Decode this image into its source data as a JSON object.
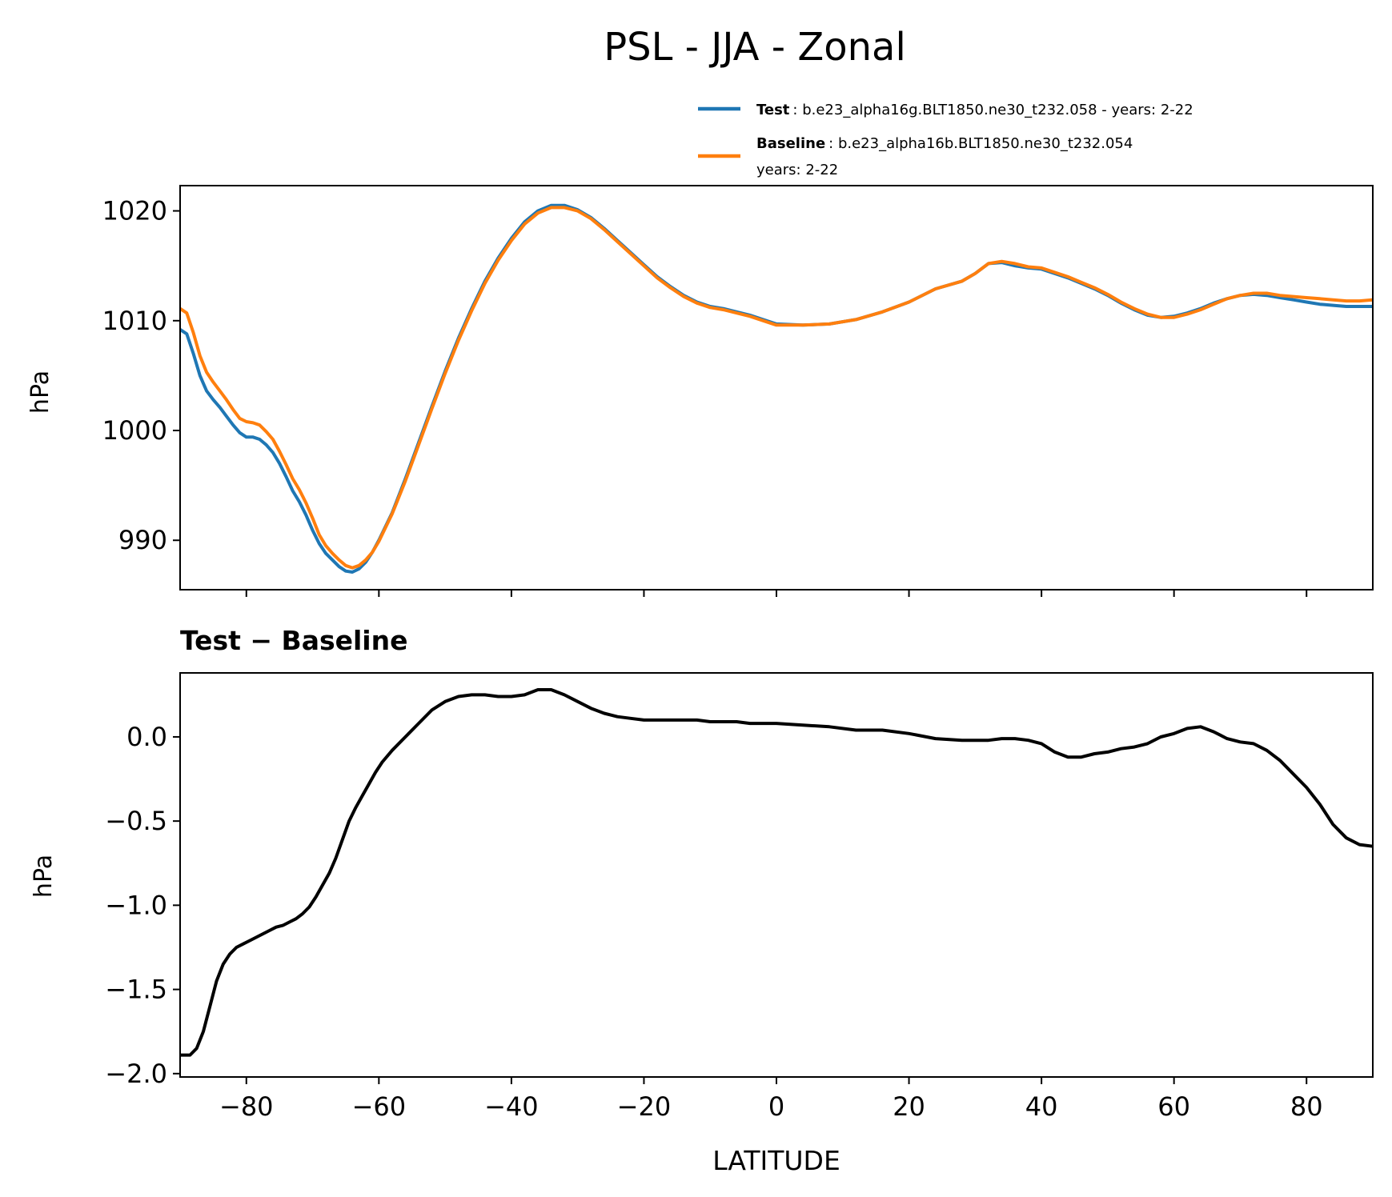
{
  "title": "PSL - JJA - Zonal",
  "legend": {
    "test_label": "Test",
    "test_text": ": b.e23_alpha16g.BLT1850.ne30_t232.058 - years: 2-22",
    "baseline_label": "Baseline",
    "baseline_text": ": b.e23_alpha16b.BLT1850.ne30_t232.054",
    "baseline_text2": "years: 2-22"
  },
  "colors": {
    "test": "#1f77b4",
    "baseline": "#ff7f0e",
    "diff": "#000000"
  },
  "chart_data": [
    {
      "type": "line",
      "panel": "top",
      "ylabel": "hPa",
      "xlim": [
        -90,
        90
      ],
      "ylim": [
        985.5,
        1022.3
      ],
      "yticks": [
        990,
        1000,
        1010,
        1020
      ],
      "xticks": [
        -80,
        -60,
        -40,
        -20,
        0,
        20,
        40,
        60,
        80
      ],
      "grid": false,
      "legend_position": "above-right",
      "series": [
        {
          "name": "Test",
          "x": [
            -90,
            -89,
            -88,
            -87,
            -86,
            -85,
            -84,
            -83,
            -82,
            -81,
            -80,
            -79,
            -78,
            -77,
            -76,
            -75,
            -74,
            -73,
            -72,
            -71,
            -70,
            -69,
            -68,
            -67,
            -66,
            -65,
            -64,
            -63,
            -62,
            -61,
            -60,
            -58,
            -56,
            -54,
            -52,
            -50,
            -48,
            -46,
            -44,
            -42,
            -40,
            -38,
            -36,
            -34,
            -32,
            -30,
            -28,
            -26,
            -24,
            -22,
            -20,
            -18,
            -16,
            -14,
            -12,
            -10,
            -8,
            -6,
            -4,
            -2,
            0,
            4,
            8,
            12,
            16,
            20,
            24,
            28,
            30,
            32,
            34,
            36,
            38,
            40,
            42,
            44,
            46,
            48,
            50,
            52,
            54,
            56,
            58,
            60,
            62,
            64,
            66,
            68,
            70,
            72,
            74,
            76,
            78,
            80,
            82,
            84,
            86,
            88,
            90
          ],
          "values": [
            1009.2,
            1008.8,
            1007.0,
            1005.0,
            1003.6,
            1002.8,
            1002.1,
            1001.3,
            1000.5,
            999.8,
            999.4,
            999.4,
            999.2,
            998.7,
            998.0,
            997.0,
            995.8,
            994.5,
            993.5,
            992.3,
            990.9,
            989.7,
            988.8,
            988.2,
            987.6,
            987.2,
            987.1,
            987.4,
            988.0,
            988.9,
            990.0,
            992.5,
            995.6,
            998.9,
            1002.2,
            1005.4,
            1008.4,
            1011.1,
            1013.6,
            1015.7,
            1017.5,
            1019.0,
            1020.0,
            1020.5,
            1020.5,
            1020.1,
            1019.4,
            1018.4,
            1017.3,
            1016.2,
            1015.1,
            1014.0,
            1013.1,
            1012.3,
            1011.7,
            1011.3,
            1011.1,
            1010.8,
            1010.5,
            1010.1,
            1009.7,
            1009.6,
            1009.7,
            1010.1,
            1010.8,
            1011.7,
            1012.9,
            1013.6,
            1014.3,
            1015.2,
            1015.3,
            1015.0,
            1014.8,
            1014.7,
            1014.3,
            1013.9,
            1013.4,
            1012.9,
            1012.3,
            1011.6,
            1011.0,
            1010.5,
            1010.3,
            1010.4,
            1010.7,
            1011.1,
            1011.6,
            1012.0,
            1012.3,
            1012.4,
            1012.3,
            1012.1,
            1011.9,
            1011.7,
            1011.5,
            1011.4,
            1011.3,
            1011.3,
            1011.3
          ]
        },
        {
          "name": "Baseline",
          "x": [
            -90,
            -89,
            -88,
            -87,
            -86,
            -85,
            -84,
            -83,
            -82,
            -81,
            -80,
            -79,
            -78,
            -77,
            -76,
            -75,
            -74,
            -73,
            -72,
            -71,
            -70,
            -69,
            -68,
            -67,
            -66,
            -65,
            -64,
            -63,
            -62,
            -61,
            -60,
            -58,
            -56,
            -54,
            -52,
            -50,
            -48,
            -46,
            -44,
            -42,
            -40,
            -38,
            -36,
            -34,
            -32,
            -30,
            -28,
            -26,
            -24,
            -22,
            -20,
            -18,
            -16,
            -14,
            -12,
            -10,
            -8,
            -6,
            -4,
            -2,
            0,
            4,
            8,
            12,
            16,
            20,
            24,
            28,
            30,
            32,
            34,
            36,
            38,
            40,
            42,
            44,
            46,
            48,
            50,
            52,
            54,
            56,
            58,
            60,
            62,
            64,
            66,
            68,
            70,
            72,
            74,
            76,
            78,
            80,
            82,
            84,
            86,
            88,
            90
          ],
          "values": [
            1011.1,
            1010.7,
            1008.9,
            1006.8,
            1005.3,
            1004.4,
            1003.6,
            1002.8,
            1001.9,
            1001.1,
            1000.8,
            1000.7,
            1000.5,
            999.9,
            999.2,
            998.1,
            996.9,
            995.6,
            994.6,
            993.4,
            992.0,
            990.5,
            989.5,
            988.8,
            988.2,
            987.7,
            987.5,
            987.7,
            988.2,
            988.9,
            989.9,
            992.4,
            995.4,
            998.7,
            1002.0,
            1005.2,
            1008.2,
            1010.9,
            1013.4,
            1015.5,
            1017.3,
            1018.8,
            1019.8,
            1020.3,
            1020.3,
            1020.0,
            1019.3,
            1018.3,
            1017.2,
            1016.1,
            1015.0,
            1013.9,
            1013.0,
            1012.2,
            1011.6,
            1011.2,
            1011.0,
            1010.7,
            1010.4,
            1010.0,
            1009.6,
            1009.6,
            1009.7,
            1010.1,
            1010.8,
            1011.7,
            1012.9,
            1013.6,
            1014.3,
            1015.2,
            1015.4,
            1015.2,
            1014.9,
            1014.8,
            1014.4,
            1014.0,
            1013.5,
            1013.0,
            1012.4,
            1011.7,
            1011.1,
            1010.6,
            1010.3,
            1010.3,
            1010.6,
            1011.0,
            1011.5,
            1012.0,
            1012.3,
            1012.5,
            1012.5,
            1012.3,
            1012.2,
            1012.1,
            1012.0,
            1011.9,
            1011.8,
            1011.8,
            1011.9
          ]
        }
      ]
    },
    {
      "type": "line",
      "panel": "bottom",
      "title": "Test − Baseline",
      "xlabel": "LATITUDE",
      "ylabel": "hPa",
      "xlim": [
        -90,
        90
      ],
      "ylim": [
        -2.02,
        0.38
      ],
      "yticks": [
        -2.0,
        -1.5,
        -1.0,
        -0.5,
        0.0
      ],
      "ytick_labels": [
        "−2.0",
        "−1.5",
        "−1.0",
        "−0.5",
        "0.0"
      ],
      "xticks": [
        -80,
        -60,
        -40,
        -20,
        0,
        20,
        40,
        60,
        80
      ],
      "xtick_labels": [
        "−80",
        "−60",
        "−40",
        "−20",
        "0",
        "20",
        "40",
        "60",
        "80"
      ],
      "grid": false,
      "series": [
        {
          "x": [
            -90,
            -88.5,
            -87.5,
            -86.5,
            -85.5,
            -84.5,
            -83.5,
            -82.5,
            -81.5,
            -80.5,
            -79.5,
            -78.5,
            -77.5,
            -76.5,
            -75.5,
            -74.5,
            -73.5,
            -72.5,
            -71.5,
            -70.5,
            -69.5,
            -68.5,
            -67.5,
            -66.5,
            -65.5,
            -64.5,
            -63.5,
            -62.5,
            -61.5,
            -60.5,
            -59.5,
            -58,
            -56,
            -54,
            -52,
            -50,
            -48,
            -46,
            -44,
            -42,
            -40,
            -38,
            -36,
            -34,
            -32,
            -30,
            -28,
            -26,
            -24,
            -22,
            -20,
            -18,
            -16,
            -14,
            -12,
            -10,
            -8,
            -6,
            -4,
            -2,
            0,
            4,
            8,
            12,
            16,
            20,
            24,
            28,
            30,
            32,
            34,
            36,
            38,
            40,
            42,
            44,
            46,
            48,
            50,
            52,
            54,
            56,
            58,
            60,
            62,
            64,
            66,
            68,
            70,
            72,
            74,
            76,
            78,
            80,
            82,
            84,
            86,
            88,
            90
          ],
          "values": [
            -1.89,
            -1.89,
            -1.85,
            -1.75,
            -1.6,
            -1.45,
            -1.35,
            -1.29,
            -1.25,
            -1.23,
            -1.21,
            -1.19,
            -1.17,
            -1.15,
            -1.13,
            -1.12,
            -1.1,
            -1.08,
            -1.05,
            -1.01,
            -0.95,
            -0.88,
            -0.81,
            -0.72,
            -0.61,
            -0.5,
            -0.42,
            -0.35,
            -0.28,
            -0.21,
            -0.15,
            -0.08,
            0.0,
            0.08,
            0.16,
            0.21,
            0.24,
            0.25,
            0.25,
            0.24,
            0.24,
            0.25,
            0.28,
            0.28,
            0.25,
            0.21,
            0.17,
            0.14,
            0.12,
            0.11,
            0.1,
            0.1,
            0.1,
            0.1,
            0.1,
            0.09,
            0.09,
            0.09,
            0.08,
            0.08,
            0.08,
            0.07,
            0.06,
            0.04,
            0.04,
            0.02,
            -0.01,
            -0.02,
            -0.02,
            -0.02,
            -0.01,
            -0.01,
            -0.02,
            -0.04,
            -0.09,
            -0.12,
            -0.12,
            -0.1,
            -0.09,
            -0.07,
            -0.06,
            -0.04,
            0.0,
            0.02,
            0.05,
            0.06,
            0.03,
            -0.01,
            -0.03,
            -0.04,
            -0.08,
            -0.14,
            -0.22,
            -0.3,
            -0.4,
            -0.52,
            -0.6,
            -0.64,
            -0.65
          ]
        }
      ]
    }
  ]
}
